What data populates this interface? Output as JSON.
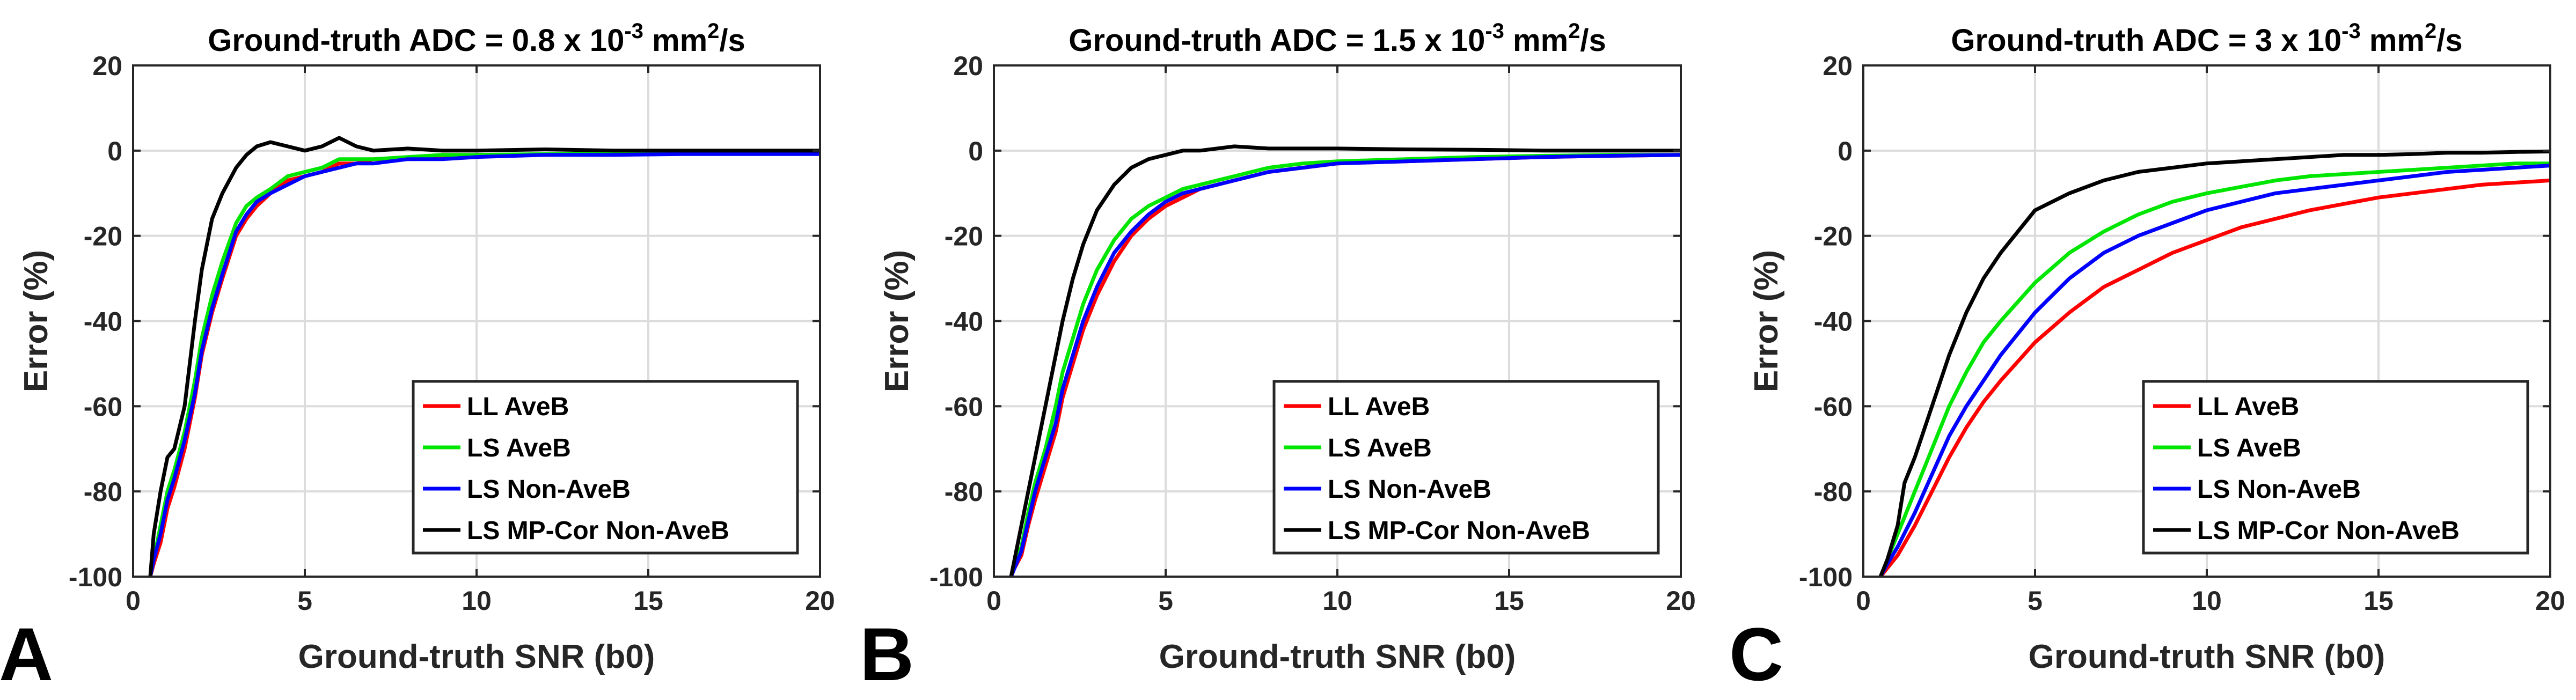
{
  "chart_data": [
    {
      "type": "line",
      "panel_letter": "A",
      "title": {
        "prefix": "Ground-truth ADC = 0.8 x 10",
        "exponent": "-3",
        "unit_base": " mm",
        "unit_exp": "2",
        "unit_suffix": "/s"
      },
      "xlabel": "Ground-truth SNR (b0)",
      "ylabel": "Error (%)",
      "xlim": [
        0,
        20
      ],
      "ylim": [
        -100,
        20
      ],
      "xticks": [
        "0",
        "5",
        "10",
        "15",
        "20"
      ],
      "yticks": [
        "-100",
        "-80",
        "-60",
        "-40",
        "-20",
        "0",
        "20"
      ],
      "grid": true,
      "legend_position": "lower-right",
      "series": [
        {
          "name": "LL AveB",
          "color": "#ff0000",
          "x": [
            0.5,
            0.6,
            0.8,
            1.0,
            1.2,
            1.5,
            1.8,
            2.0,
            2.3,
            2.6,
            3.0,
            3.3,
            3.6,
            4.0,
            4.5,
            5.0,
            5.5,
            6.0,
            6.5,
            7.0,
            8.0,
            9.0,
            10,
            12,
            14,
            16,
            18,
            20
          ],
          "y": [
            -100,
            -97,
            -92,
            -84,
            -79,
            -70,
            -58,
            -48,
            -38,
            -30,
            -20,
            -16,
            -13,
            -10,
            -7,
            -6,
            -5,
            -3,
            -3,
            -2,
            -2,
            -1.5,
            -1,
            -1,
            -0.8,
            -0.6,
            -0.5,
            -0.5
          ]
        },
        {
          "name": "LS AveB",
          "color": "#00e600",
          "x": [
            0.5,
            0.6,
            0.8,
            1.0,
            1.2,
            1.5,
            1.8,
            2.0,
            2.3,
            2.6,
            3.0,
            3.3,
            3.6,
            4.0,
            4.5,
            5.0,
            5.5,
            6.0,
            6.5,
            7.0,
            8.0,
            9.0,
            10,
            12,
            14,
            16,
            18,
            20
          ],
          "y": [
            -100,
            -96,
            -88,
            -80,
            -75,
            -66,
            -54,
            -44,
            -34,
            -26,
            -17,
            -13,
            -11,
            -9,
            -6,
            -5,
            -4,
            -2,
            -2,
            -2,
            -1.5,
            -1,
            -1,
            -0.8,
            -0.6,
            -0.5,
            -0.5,
            -0.5
          ]
        },
        {
          "name": "LS Non-AveB",
          "color": "#0000ff",
          "x": [
            0.5,
            0.6,
            0.8,
            1.0,
            1.2,
            1.5,
            1.8,
            2.0,
            2.3,
            2.6,
            3.0,
            3.3,
            3.6,
            4.0,
            4.5,
            5.0,
            5.5,
            6.0,
            6.5,
            7.0,
            8.0,
            9.0,
            10,
            12,
            14,
            16,
            18,
            20
          ],
          "y": [
            -100,
            -96,
            -90,
            -82,
            -77,
            -68,
            -57,
            -47,
            -37,
            -29,
            -19,
            -15,
            -12,
            -10,
            -8,
            -6,
            -5,
            -4,
            -3,
            -3,
            -2,
            -2,
            -1.5,
            -1,
            -1,
            -0.8,
            -0.8,
            -0.8
          ]
        },
        {
          "name": "LS MP-Cor Non-AveB",
          "color": "#000000",
          "x": [
            0.5,
            0.6,
            0.8,
            1.0,
            1.2,
            1.5,
            1.8,
            2.0,
            2.3,
            2.6,
            3.0,
            3.3,
            3.6,
            4.0,
            4.5,
            5.0,
            5.5,
            6.0,
            6.5,
            7.0,
            8.0,
            9.0,
            10,
            12,
            14,
            16,
            18,
            20
          ],
          "y": [
            -100,
            -90,
            -80,
            -72,
            -70,
            -60,
            -40,
            -28,
            -16,
            -10,
            -4,
            -1,
            1,
            2,
            1,
            0,
            1,
            3,
            1,
            0,
            0.5,
            0,
            0,
            0.3,
            0,
            0,
            0,
            0
          ]
        }
      ]
    },
    {
      "type": "line",
      "panel_letter": "B",
      "title": {
        "prefix": "Ground-truth ADC = 1.5 x 10",
        "exponent": "-3",
        "unit_base": " mm",
        "unit_exp": "2",
        "unit_suffix": "/s"
      },
      "xlabel": "Ground-truth SNR (b0)",
      "ylabel": "Error (%)",
      "xlim": [
        0,
        20
      ],
      "ylim": [
        -100,
        20
      ],
      "xticks": [
        "0",
        "5",
        "10",
        "15",
        "20"
      ],
      "yticks": [
        "-100",
        "-80",
        "-60",
        "-40",
        "-20",
        "0",
        "20"
      ],
      "grid": true,
      "legend_position": "lower-right",
      "series": [
        {
          "name": "LL AveB",
          "color": "#ff0000",
          "x": [
            0.5,
            0.6,
            0.8,
            1.0,
            1.2,
            1.5,
            1.8,
            2.0,
            2.3,
            2.6,
            3.0,
            3.5,
            4.0,
            4.5,
            5.0,
            5.5,
            6.0,
            6.5,
            7.0,
            8.0,
            9.0,
            10,
            12,
            14,
            16,
            18,
            20
          ],
          "y": [
            -100,
            -98,
            -95,
            -88,
            -82,
            -74,
            -66,
            -58,
            -50,
            -42,
            -34,
            -26,
            -20,
            -16,
            -13,
            -11,
            -9,
            -8,
            -7,
            -5,
            -4,
            -3,
            -2.5,
            -2,
            -1.5,
            -1.2,
            -1
          ]
        },
        {
          "name": "LS AveB",
          "color": "#00e600",
          "x": [
            0.5,
            0.6,
            0.8,
            1.0,
            1.2,
            1.5,
            1.8,
            2.0,
            2.3,
            2.6,
            3.0,
            3.5,
            4.0,
            4.5,
            5.0,
            5.5,
            6.0,
            6.5,
            7.0,
            8.0,
            9.0,
            10,
            12,
            14,
            16,
            18,
            20
          ],
          "y": [
            -100,
            -97,
            -93,
            -85,
            -78,
            -70,
            -60,
            -52,
            -44,
            -36,
            -28,
            -21,
            -16,
            -13,
            -11,
            -9,
            -8,
            -7,
            -6,
            -4,
            -3,
            -2.5,
            -2,
            -1.5,
            -1.2,
            -1,
            -1
          ]
        },
        {
          "name": "LS Non-AveB",
          "color": "#0000ff",
          "x": [
            0.5,
            0.6,
            0.8,
            1.0,
            1.2,
            1.5,
            1.8,
            2.0,
            2.3,
            2.6,
            3.0,
            3.5,
            4.0,
            4.5,
            5.0,
            5.5,
            6.0,
            6.5,
            7.0,
            8.0,
            9.0,
            10,
            12,
            14,
            16,
            18,
            20
          ],
          "y": [
            -100,
            -98,
            -94,
            -87,
            -80,
            -72,
            -64,
            -56,
            -48,
            -40,
            -32,
            -24,
            -19,
            -15,
            -12,
            -10,
            -9,
            -8,
            -7,
            -5,
            -4,
            -3,
            -2.5,
            -2,
            -1.5,
            -1.2,
            -1
          ]
        },
        {
          "name": "LS MP-Cor Non-AveB",
          "color": "#000000",
          "x": [
            0.5,
            0.6,
            0.8,
            1.0,
            1.2,
            1.5,
            1.8,
            2.0,
            2.3,
            2.6,
            3.0,
            3.5,
            4.0,
            4.5,
            5.0,
            5.5,
            6.0,
            6.5,
            7.0,
            8.0,
            9.0,
            10,
            12,
            14,
            16,
            18,
            20
          ],
          "y": [
            -100,
            -96,
            -88,
            -80,
            -72,
            -60,
            -48,
            -40,
            -30,
            -22,
            -14,
            -8,
            -4,
            -2,
            -1,
            0,
            0,
            0.5,
            1,
            0.5,
            0.5,
            0.5,
            0.3,
            0.2,
            0,
            0,
            0
          ]
        }
      ]
    },
    {
      "type": "line",
      "panel_letter": "C",
      "title": {
        "prefix": "Ground-truth ADC = 3 x 10",
        "exponent": "-3",
        "unit_base": " mm",
        "unit_exp": "2",
        "unit_suffix": "/s"
      },
      "xlabel": "Ground-truth SNR (b0)",
      "ylabel": "Error (%)",
      "xlim": [
        0,
        20
      ],
      "ylim": [
        -100,
        20
      ],
      "xticks": [
        "0",
        "5",
        "10",
        "15",
        "20"
      ],
      "yticks": [
        "-100",
        "-80",
        "-60",
        "-40",
        "-20",
        "0",
        "20"
      ],
      "grid": true,
      "legend_position": "lower-right",
      "series": [
        {
          "name": "LL AveB",
          "color": "#ff0000",
          "x": [
            0.5,
            0.7,
            1.0,
            1.5,
            2.0,
            2.5,
            3.0,
            3.5,
            4.0,
            5.0,
            6.0,
            7.0,
            8.0,
            9.0,
            10,
            11,
            12,
            13,
            14,
            15,
            16,
            17,
            18,
            19,
            20
          ],
          "y": [
            -100,
            -98,
            -95,
            -88,
            -80,
            -72,
            -65,
            -59,
            -54,
            -45,
            -38,
            -32,
            -28,
            -24,
            -21,
            -18,
            -16,
            -14,
            -12.5,
            -11,
            -10,
            -9,
            -8,
            -7.5,
            -7
          ]
        },
        {
          "name": "LS AveB",
          "color": "#00e600",
          "x": [
            0.5,
            0.7,
            1.0,
            1.5,
            2.0,
            2.5,
            3.0,
            3.5,
            4.0,
            5.0,
            6.0,
            7.0,
            8.0,
            9.0,
            10,
            11,
            12,
            13,
            14,
            15,
            16,
            17,
            18,
            19,
            20
          ],
          "y": [
            -100,
            -96,
            -90,
            -80,
            -70,
            -60,
            -52,
            -45,
            -40,
            -31,
            -24,
            -19,
            -15,
            -12,
            -10,
            -8.5,
            -7,
            -6,
            -5.5,
            -5,
            -4.5,
            -4,
            -3.5,
            -3,
            -3
          ]
        },
        {
          "name": "LS Non-AveB",
          "color": "#0000ff",
          "x": [
            0.5,
            0.7,
            1.0,
            1.5,
            2.0,
            2.5,
            3.0,
            3.5,
            4.0,
            5.0,
            6.0,
            7.0,
            8.0,
            9.0,
            10,
            11,
            12,
            13,
            14,
            15,
            16,
            17,
            18,
            19,
            20
          ],
          "y": [
            -100,
            -97,
            -93,
            -85,
            -76,
            -67,
            -60,
            -54,
            -48,
            -38,
            -30,
            -24,
            -20,
            -17,
            -14,
            -12,
            -10,
            -9,
            -8,
            -7,
            -6,
            -5,
            -4.5,
            -4,
            -3.5
          ]
        },
        {
          "name": "LS MP-Cor Non-AveB",
          "color": "#000000",
          "x": [
            0.5,
            0.7,
            1.0,
            1.2,
            1.5,
            2.0,
            2.5,
            3.0,
            3.5,
            4.0,
            5.0,
            6.0,
            7.0,
            8.0,
            9.0,
            10,
            11,
            12,
            13,
            14,
            15,
            16,
            17,
            18,
            19,
            20
          ],
          "y": [
            -100,
            -96,
            -88,
            -78,
            -72,
            -60,
            -48,
            -38,
            -30,
            -24,
            -14,
            -10,
            -7,
            -5,
            -4,
            -3,
            -2.5,
            -2,
            -1.5,
            -1,
            -1,
            -0.8,
            -0.5,
            -0.5,
            -0.3,
            -0.2
          ]
        }
      ]
    }
  ]
}
